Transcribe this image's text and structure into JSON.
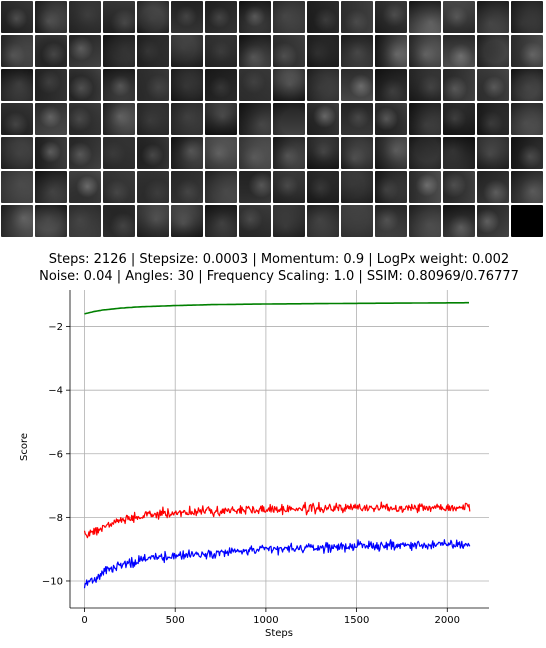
{
  "thumbnails": {
    "rows": 7,
    "cols": 16,
    "row_counts": [
      16,
      16,
      16,
      16,
      16,
      16,
      15
    ],
    "empty_slots": 1,
    "tone": "grayscale"
  },
  "chart_data": {
    "type": "line",
    "title": [
      "Steps: 2126 | Stepsize: 0.0003 | Momentum: 0.9 | LogPx weight: 0.002",
      "Noise: 0.04 | Angles: 30 | Frequency Scaling: 1.0 | SSIM: 0.80969/0.76777"
    ],
    "xlabel": "Steps",
    "ylabel": "Score",
    "xlim": [
      -80,
      2230
    ],
    "ylim": [
      -10.85,
      -0.85
    ],
    "xticks": [
      0,
      500,
      1000,
      1500,
      2000
    ],
    "xtick_labels": [
      "0",
      "500",
      "1000",
      "1500",
      "2000"
    ],
    "yticks": [
      -2,
      -4,
      -6,
      -8,
      -10
    ],
    "ytick_labels": [
      "−2",
      "−4",
      "−6",
      "−8",
      "−10"
    ],
    "grid": true,
    "series": [
      {
        "color": "#008000",
        "x": [
          0,
          50,
          100,
          200,
          300,
          400,
          500,
          700,
          1000,
          1500,
          2126
        ],
        "y": [
          -1.6,
          -1.53,
          -1.48,
          -1.42,
          -1.38,
          -1.36,
          -1.34,
          -1.31,
          -1.29,
          -1.27,
          -1.25
        ],
        "noise": 0
      },
      {
        "color": "#ff0000",
        "x": [
          0,
          50,
          100,
          200,
          300,
          400,
          500,
          700,
          1000,
          1500,
          2126
        ],
        "y": [
          -8.55,
          -8.45,
          -8.3,
          -8.1,
          -7.98,
          -7.9,
          -7.85,
          -7.8,
          -7.75,
          -7.7,
          -7.67
        ],
        "noise": 0.09
      },
      {
        "color": "#0000ff",
        "x": [
          0,
          50,
          100,
          200,
          300,
          400,
          500,
          700,
          1000,
          1500,
          2126
        ],
        "y": [
          -10.1,
          -9.95,
          -9.75,
          -9.5,
          -9.35,
          -9.25,
          -9.2,
          -9.12,
          -9.02,
          -8.9,
          -8.85
        ],
        "noise": 0.09
      }
    ]
  }
}
